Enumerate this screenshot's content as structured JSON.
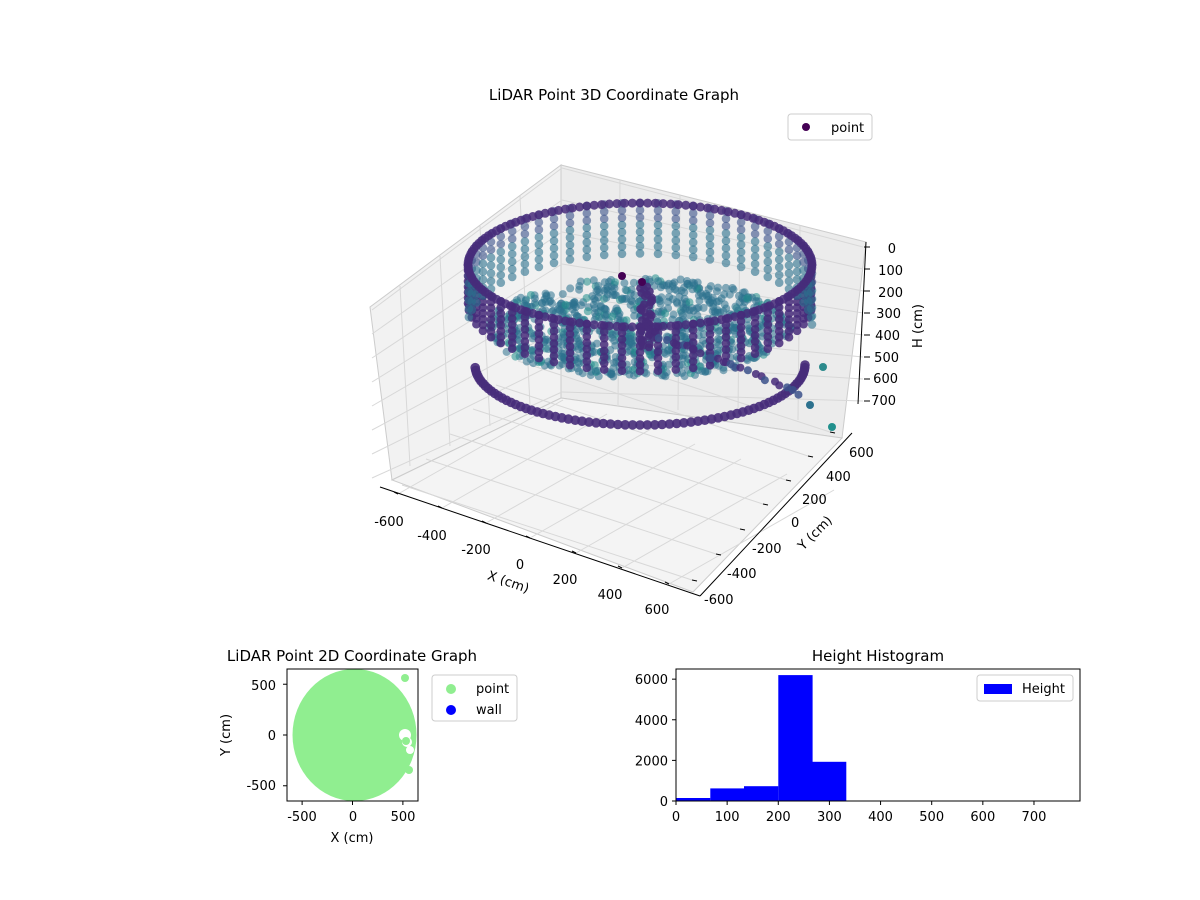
{
  "chart_data": [
    {
      "type": "scatter",
      "projection": "3d",
      "title": "LiDAR Point 3D Coordinate Graph",
      "xlabel": "X (cm)",
      "ylabel": "Y (cm)",
      "zlabel": "H (cm)",
      "x_ticks": [
        -600,
        -400,
        -200,
        0,
        200,
        400,
        600
      ],
      "y_ticks": [
        -600,
        -400,
        -200,
        0,
        200,
        400,
        600
      ],
      "z_ticks": [
        0,
        100,
        200,
        300,
        400,
        500,
        600,
        700
      ],
      "xlim": [
        -650,
        650
      ],
      "ylim": [
        -650,
        650
      ],
      "zlim": [
        0,
        750
      ],
      "z_inverted": true,
      "colormap": "viridis (color by height)",
      "legend": {
        "label": "point",
        "position": "top-right"
      },
      "structure": {
        "description_of_shape": "cylindrical room scan",
        "ring_radius_cm": 620,
        "ring_heights_cm": [
          60,
          360
        ],
        "stripe_count": 60
      },
      "series": [
        {
          "name": "point"
        }
      ]
    },
    {
      "type": "scatter",
      "title": "LiDAR Point 2D Coordinate Graph",
      "xlabel": "X (cm)",
      "ylabel": "Y (cm)",
      "x_ticks": [
        -500,
        0,
        500
      ],
      "y_ticks": [
        -500,
        0,
        500
      ],
      "xlim": [
        -650,
        650
      ],
      "ylim": [
        -650,
        650
      ],
      "series": [
        {
          "name": "point",
          "color": "#90ee90"
        },
        {
          "name": "wall",
          "color": "#0000ff"
        }
      ],
      "legend": {
        "position": "outside-right"
      }
    },
    {
      "type": "bar",
      "subtype": "histogram",
      "title": "Height Histogram",
      "series": [
        {
          "name": "Height",
          "color": "#0000ff"
        }
      ],
      "bin_edges": [
        0,
        67,
        133,
        200,
        267,
        333,
        400,
        467,
        533,
        600,
        667,
        733
      ],
      "values": [
        150,
        620,
        730,
        6200,
        1930,
        0,
        0,
        0,
        0,
        0,
        0
      ],
      "x_ticks": [
        0,
        100,
        200,
        300,
        400,
        500,
        600,
        700
      ],
      "y_ticks": [
        0,
        2000,
        4000,
        6000
      ],
      "xlim": [
        0,
        790
      ],
      "ylim": [
        0,
        6500
      ],
      "legend": {
        "position": "top-right"
      }
    }
  ]
}
